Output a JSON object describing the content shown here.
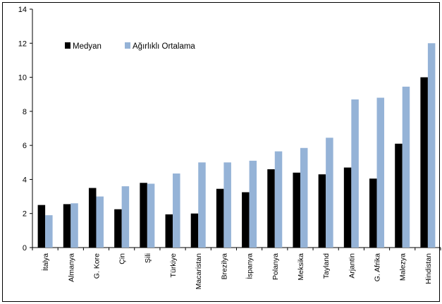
{
  "chart_data": {
    "type": "bar",
    "categories": [
      "İtalya",
      "Almanya",
      "G. Kore",
      "Çin",
      "Şili",
      "Türkiye",
      "Macaristan",
      "Brezilya",
      "İspanya",
      "Polanya",
      "Meksika",
      "Tayland",
      "Arjantin",
      "G. Afrika",
      "Malezya",
      "Hindistan"
    ],
    "series": [
      {
        "name": "Medyan",
        "color": "#000000",
        "values": [
          2.5,
          2.55,
          3.5,
          2.25,
          3.8,
          1.95,
          2.0,
          3.45,
          3.25,
          4.6,
          4.4,
          4.3,
          4.7,
          4.05,
          6.1,
          10.0
        ]
      },
      {
        "name": "Ağırlıklı Ortalama",
        "color": "#95b3d7",
        "values": [
          1.9,
          2.6,
          3.0,
          3.6,
          3.75,
          4.35,
          5.0,
          5.0,
          5.1,
          5.65,
          5.85,
          6.45,
          8.7,
          8.8,
          9.45,
          12.0
        ]
      }
    ],
    "ylim": [
      0,
      14
    ],
    "yticks": [
      0,
      2,
      4,
      6,
      8,
      10,
      12,
      14
    ],
    "grid": false,
    "legend": "top-left",
    "title": "",
    "xlabel": "",
    "ylabel": ""
  }
}
